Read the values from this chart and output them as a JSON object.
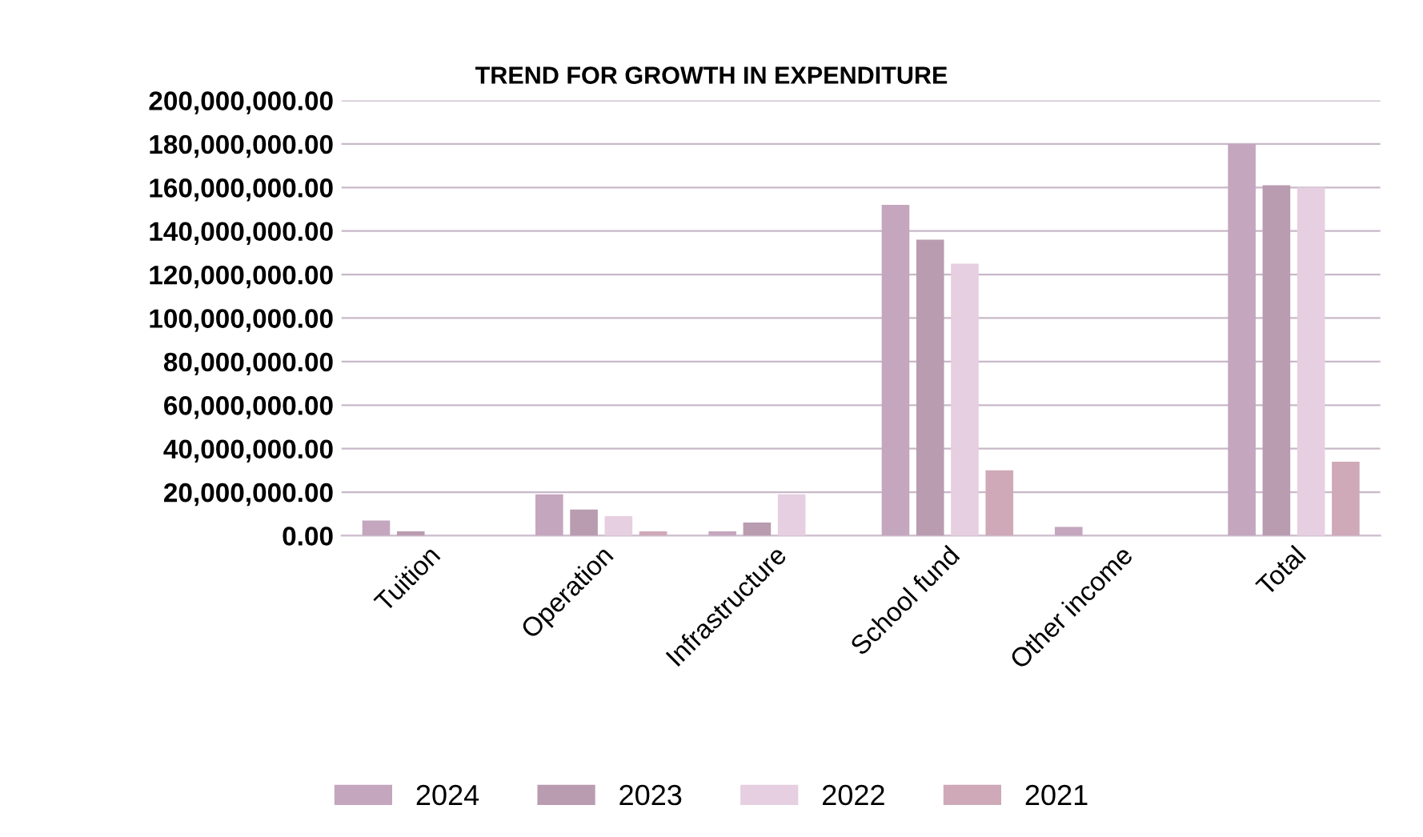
{
  "chart_data": {
    "type": "bar",
    "title": "TREND FOR GROWTH IN EXPENDITURE",
    "categories": [
      "Tuition",
      "Operation",
      "Infrastructure",
      "School fund",
      "Other income",
      "Total"
    ],
    "series": [
      {
        "name": "2024",
        "color": "#c4a6be",
        "values": [
          7000000,
          19000000,
          2000000,
          152000000,
          4000000,
          180000000
        ]
      },
      {
        "name": "2023",
        "color": "#b99cb0",
        "values": [
          2000000,
          12000000,
          6000000,
          136000000,
          null,
          161000000
        ]
      },
      {
        "name": "2022",
        "color": "#e6cfe0",
        "values": [
          null,
          9000000,
          19000000,
          125000000,
          null,
          160000000
        ]
      },
      {
        "name": "2021",
        "color": "#cfa9b8",
        "values": [
          null,
          2000000,
          null,
          30000000,
          null,
          34000000
        ]
      }
    ],
    "ylim": [
      0,
      200000000
    ],
    "yticks": [
      {
        "value": 0,
        "label": "0.00"
      },
      {
        "value": 20000000,
        "label": "20,000,000.00"
      },
      {
        "value": 40000000,
        "label": "40,000,000.00"
      },
      {
        "value": 60000000,
        "label": "60,000,000.00"
      },
      {
        "value": 80000000,
        "label": "80,000,000.00"
      },
      {
        "value": 100000000,
        "label": "100,000,000.00"
      },
      {
        "value": 120000000,
        "label": "120,000,000.00"
      },
      {
        "value": 140000000,
        "label": "140,000,000.00"
      },
      {
        "value": 160000000,
        "label": "160,000,000.00"
      },
      {
        "value": 180000000,
        "label": "180,000,000.00"
      },
      {
        "value": 200000000,
        "label": "200,000,000.00"
      }
    ],
    "grid": "y",
    "legend": "bottom"
  }
}
